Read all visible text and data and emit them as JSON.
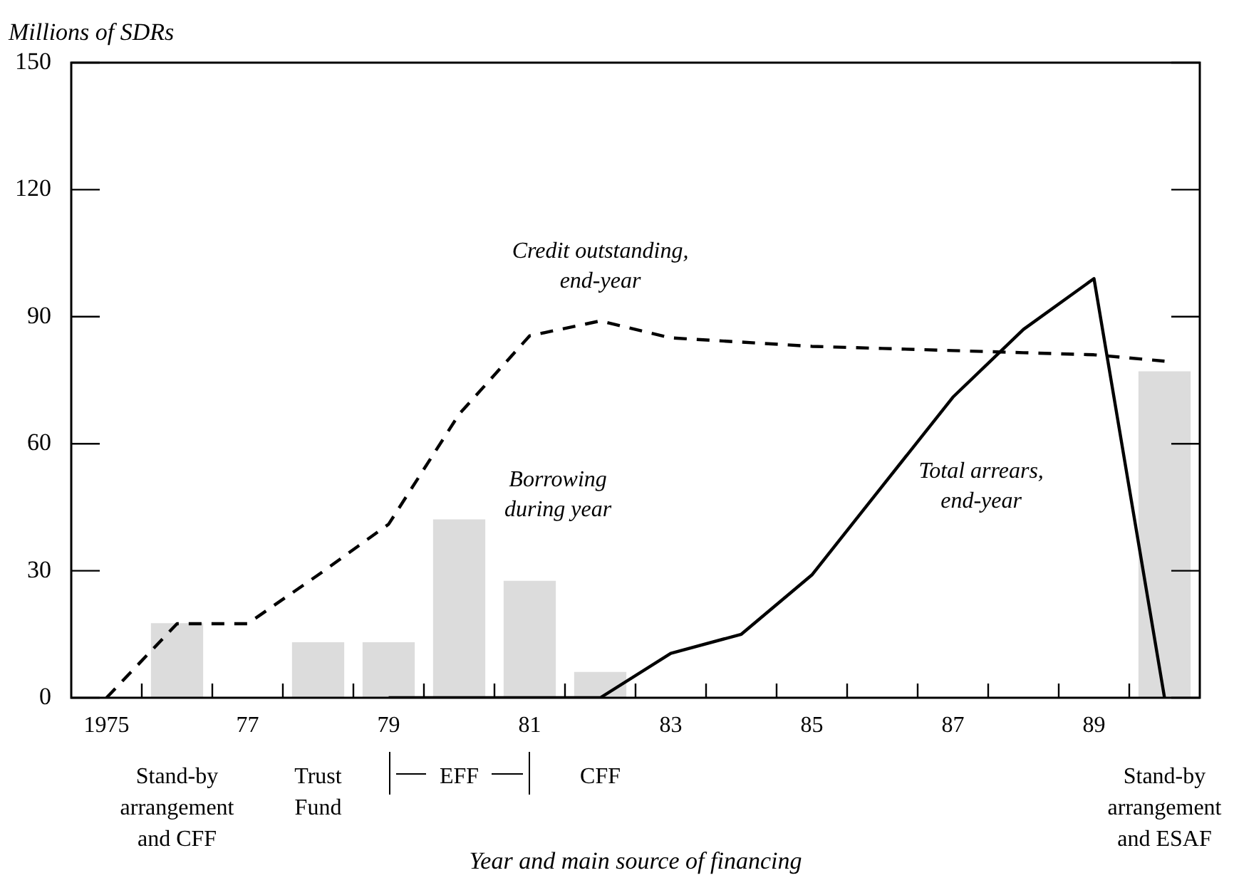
{
  "chart_data": {
    "type": "bar",
    "ylabel": "Millions of SDRs",
    "xlabel": "Year and main source of financing",
    "xlim": [
      1974.5,
      1990.5
    ],
    "xticks": [
      {
        "value": 1975,
        "label": "1975"
      },
      {
        "value": 1975.5,
        "label": null
      },
      {
        "value": 1976.5,
        "label": null
      },
      {
        "value": 1977,
        "label": "77"
      },
      {
        "value": 1977.5,
        "label": null
      },
      {
        "value": 1978.5,
        "label": null
      },
      {
        "value": 1979,
        "label": "79"
      },
      {
        "value": 1979.5,
        "label": null
      },
      {
        "value": 1980.5,
        "label": null
      },
      {
        "value": 1981,
        "label": "81"
      },
      {
        "value": 1981.5,
        "label": null
      },
      {
        "value": 1982.5,
        "label": null
      },
      {
        "value": 1983,
        "label": "83"
      },
      {
        "value": 1983.5,
        "label": null
      },
      {
        "value": 1984.5,
        "label": null
      },
      {
        "value": 1985,
        "label": "85"
      },
      {
        "value": 1985.5,
        "label": null
      },
      {
        "value": 1986.5,
        "label": null
      },
      {
        "value": 1987,
        "label": "87"
      },
      {
        "value": 1987.5,
        "label": null
      },
      {
        "value": 1988.5,
        "label": null
      },
      {
        "value": 1989,
        "label": "89"
      },
      {
        "value": 1989.5,
        "label": null
      }
    ],
    "ylim": [
      0,
      150
    ],
    "yticks": [
      0,
      30,
      60,
      90,
      120,
      150
    ],
    "marker": "none",
    "series": [
      {
        "color": "#dcdcdc",
        "x": [
          1976,
          1978,
          1979,
          1980,
          1981,
          1982,
          1990
        ],
        "values": [
          17.5,
          13,
          13,
          42,
          27.5,
          6,
          77
        ]
      },
      {
        "type": "line",
        "line_style": "dashed",
        "color": "#000000",
        "x": [
          1975,
          1976,
          1977,
          1978,
          1979,
          1980,
          1981,
          1982,
          1983,
          1984,
          1985,
          1986,
          1987,
          1988,
          1989,
          1990
        ],
        "values": [
          0,
          17.5,
          17.5,
          29,
          41,
          67,
          85.5,
          89,
          85,
          84,
          83,
          82.5,
          82,
          81.5,
          81,
          79.5
        ]
      },
      {
        "type": "line",
        "line_style": "solid",
        "color": "#000000",
        "x": [
          1979,
          1980,
          1981,
          1982,
          1983,
          1984,
          1985,
          1986,
          1987,
          1988,
          1989,
          1990
        ],
        "values": [
          0,
          0,
          0,
          0,
          10.5,
          15,
          29,
          50,
          71,
          87,
          99,
          0
        ]
      }
    ],
    "annotations": [
      "Credit outstanding,\nend-year",
      "Borrowing\nduring year",
      "Total arrears,\nend-year",
      "Stand-by\narrangement\nand CFF",
      "Trust\nFund",
      "EFF",
      "CFF",
      "Stand-by\narrangement\nand ESAF"
    ]
  }
}
